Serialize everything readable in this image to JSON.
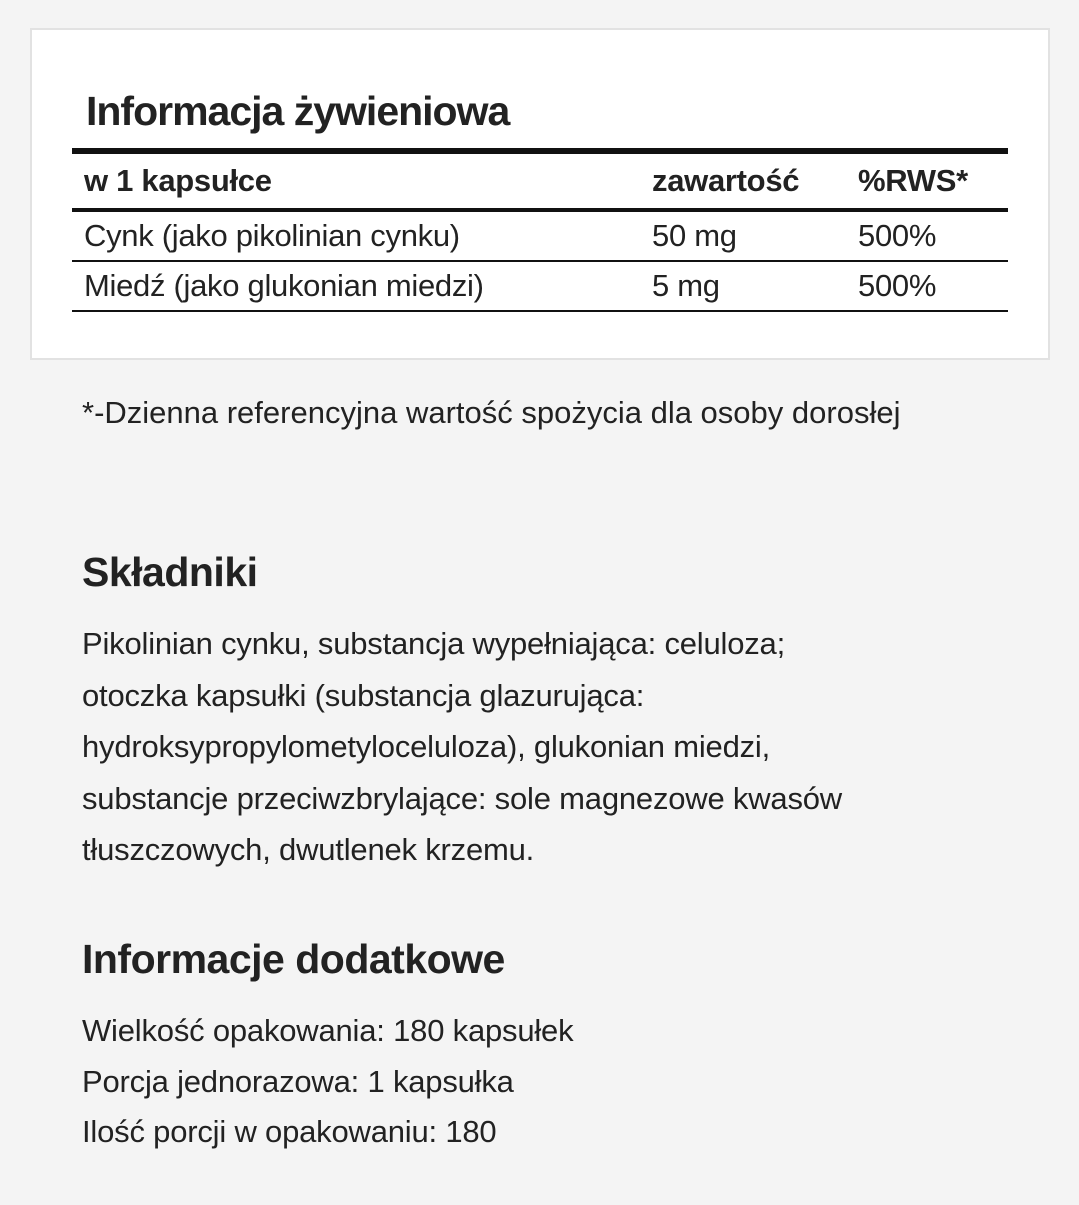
{
  "nutrition": {
    "title": "Informacja żywieniowa",
    "headers": [
      "w 1 kapsułce",
      "zawartość",
      "%RWS*"
    ],
    "rows": [
      [
        "Cynk (jako pikolinian cynku)",
        "50 mg",
        "500%"
      ],
      [
        "Miedź (jako glukonian miedzi)",
        "5 mg",
        "500%"
      ]
    ]
  },
  "footnote": "*-Dzienna referencyjna wartość spożycia dla osoby dorosłej",
  "ingredients": {
    "title": "Składniki",
    "lines": [
      "Pikolinian cynku, substancja wypełniająca: celuloza;",
      "otoczka kapsułki (substancja glazurująca:",
      "hydroksypropylometyloceluloza), glukonian miedzi,",
      "substancje przeciwzbrylające: sole magnezowe kwasów",
      "tłuszczowych, dwutlenek krzemu."
    ]
  },
  "additional": {
    "title": "Informacje dodatkowe",
    "lines": [
      "Wielkość opakowania: 180 kapsułek",
      "Porcja jednorazowa: 1 kapsułka",
      "Ilość porcji w opakowaniu: 180"
    ]
  }
}
